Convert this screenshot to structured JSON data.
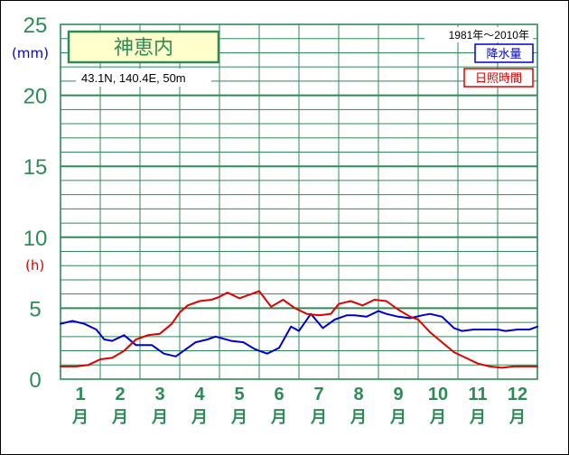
{
  "station": {
    "name": "神恵内",
    "coords": "43.1N,  140.4E,  50m",
    "period": "1981年～2010年"
  },
  "units": {
    "precip": "(mm)",
    "sun": "(h)"
  },
  "colors": {
    "grid": "#2e8b57",
    "precip": "#0000cc",
    "sun": "#dd0000",
    "title_bg": "#ffffcc"
  },
  "chart_data": {
    "type": "line",
    "ylim": [
      0,
      25
    ],
    "yticks": [
      "25",
      "20",
      "15",
      "10",
      "5",
      "0"
    ],
    "months": [
      "1",
      "2",
      "3",
      "4",
      "5",
      "6",
      "7",
      "8",
      "9",
      "10",
      "11",
      "12"
    ],
    "month_suffix": "月",
    "x_range": [
      1,
      13
    ],
    "grid": true,
    "legend_placement": "top-right",
    "series": [
      {
        "name": "降水量",
        "color": "#0000cc",
        "x": [
          1.0,
          1.3,
          1.6,
          1.9,
          2.1,
          2.3,
          2.6,
          2.9,
          3.1,
          3.3,
          3.6,
          3.9,
          4.1,
          4.4,
          4.7,
          4.9,
          5.3,
          5.6,
          5.9,
          6.2,
          6.5,
          6.8,
          7.0,
          7.3,
          7.6,
          7.9,
          8.2,
          8.4,
          8.7,
          9.0,
          9.2,
          9.5,
          9.8,
          10.1,
          10.3,
          10.6,
          10.9,
          11.1,
          11.4,
          11.7,
          12.0,
          12.2,
          12.5,
          12.8,
          13.0
        ],
        "values": [
          3.9,
          4.1,
          3.9,
          3.5,
          2.8,
          2.7,
          3.1,
          2.4,
          2.4,
          2.4,
          1.8,
          1.6,
          2.0,
          2.6,
          2.8,
          3.0,
          2.7,
          2.6,
          2.1,
          1.8,
          2.2,
          3.7,
          3.4,
          4.6,
          3.6,
          4.2,
          4.5,
          4.5,
          4.4,
          4.8,
          4.6,
          4.4,
          4.3,
          4.5,
          4.6,
          4.4,
          3.6,
          3.4,
          3.5,
          3.5,
          3.5,
          3.4,
          3.5,
          3.5,
          3.7
        ]
      },
      {
        "name": "日照時間",
        "color": "#dd0000",
        "x": [
          1.0,
          1.4,
          1.7,
          2.0,
          2.3,
          2.6,
          2.9,
          3.2,
          3.5,
          3.8,
          4.0,
          4.2,
          4.5,
          4.8,
          5.0,
          5.2,
          5.5,
          5.8,
          6.0,
          6.3,
          6.6,
          6.9,
          7.2,
          7.5,
          7.8,
          8.0,
          8.3,
          8.6,
          8.9,
          9.2,
          9.5,
          9.8,
          10.0,
          10.3,
          10.6,
          10.9,
          11.2,
          11.5,
          11.8,
          12.1,
          12.4,
          12.7,
          13.0
        ],
        "values": [
          0.9,
          0.9,
          1.0,
          1.4,
          1.5,
          2.0,
          2.8,
          3.1,
          3.2,
          3.9,
          4.7,
          5.2,
          5.5,
          5.6,
          5.8,
          6.1,
          5.7,
          6.0,
          6.2,
          5.1,
          5.6,
          5.0,
          4.6,
          4.5,
          4.6,
          5.3,
          5.5,
          5.2,
          5.6,
          5.5,
          4.9,
          4.4,
          4.2,
          3.3,
          2.6,
          1.9,
          1.5,
          1.1,
          0.9,
          0.8,
          0.9,
          0.9,
          0.9
        ]
      }
    ]
  }
}
